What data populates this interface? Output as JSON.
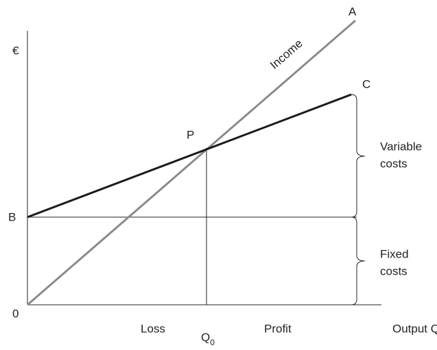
{
  "axis_labels": {
    "y": "€",
    "origin": "0",
    "x": "Output Q"
  },
  "lines": {
    "income": {
      "end_label": "A",
      "label": "Income"
    },
    "total_cost": {
      "end_label": "C"
    },
    "fixed_cost": {
      "start_label": "B"
    }
  },
  "break_even": {
    "point_label": "P",
    "quantity_label": {
      "text": "Q",
      "subscript": "0"
    }
  },
  "regions": {
    "loss": "Loss",
    "profit": "Profit"
  },
  "braces": {
    "variable_costs": [
      "Variable",
      "costs"
    ],
    "fixed_costs": [
      "Fixed",
      "costs"
    ]
  }
}
